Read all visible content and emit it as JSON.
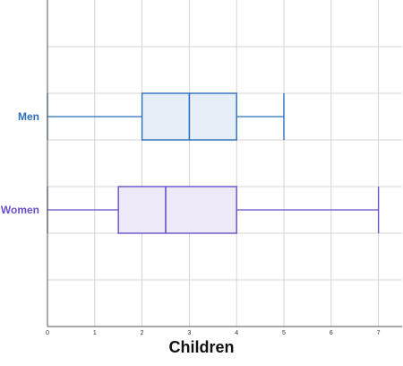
{
  "chart_data": {
    "type": "boxplot",
    "orientation": "horizontal",
    "xlabel": "Children",
    "xlim": [
      0,
      7.5
    ],
    "x_ticks": [
      "0",
      "1",
      "2",
      "3",
      "4",
      "5",
      "6",
      "7"
    ],
    "grid": true,
    "series": [
      {
        "name": "Men",
        "min": 0,
        "q1": 2,
        "median": 3,
        "q3": 4,
        "max": 5,
        "color": "#2c6fbb",
        "fill": "#e6eef8"
      },
      {
        "name": "Women",
        "min": 0,
        "q1": 1.5,
        "median": 2.5,
        "q3": 4,
        "max": 7,
        "color": "#6a4fc9",
        "fill": "#efeafa"
      }
    ]
  }
}
